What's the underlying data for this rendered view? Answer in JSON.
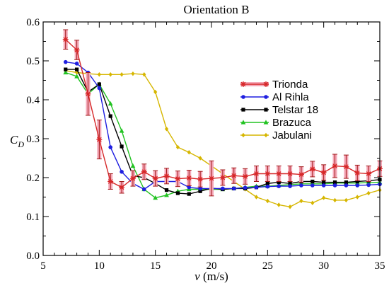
{
  "chart_data": {
    "type": "line",
    "title": "Orientation B",
    "xlabel": "v",
    "xlabel_unit": "(m/s)",
    "ylabel": "C",
    "ylabel_sub": "D",
    "xlim": [
      5,
      35
    ],
    "ylim": [
      0.0,
      0.6
    ],
    "xticks": [
      "5",
      "10",
      "15",
      "20",
      "25",
      "30",
      "35"
    ],
    "yticks": [
      "0.0",
      "0.1",
      "0.2",
      "0.3",
      "0.4",
      "0.5",
      "0.6"
    ],
    "grid": false,
    "legend_position": "right",
    "series": [
      {
        "name": "Trionda",
        "color": "#d62728",
        "marker": "asterisk",
        "error_color": "#f4a8b8",
        "x": [
          7,
          8,
          9,
          10,
          11,
          12,
          13,
          14,
          15,
          16,
          17,
          18,
          19,
          20,
          21,
          22,
          23,
          24,
          25,
          26,
          27,
          28,
          29,
          30,
          31,
          32,
          33,
          34,
          35
        ],
        "y": [
          0.555,
          0.528,
          0.415,
          0.298,
          0.19,
          0.175,
          0.198,
          0.215,
          0.198,
          0.204,
          0.197,
          0.199,
          0.196,
          0.198,
          0.2,
          0.205,
          0.203,
          0.21,
          0.21,
          0.21,
          0.21,
          0.208,
          0.222,
          0.213,
          0.23,
          0.228,
          0.212,
          0.21,
          0.223
        ],
        "err": [
          0.025,
          0.025,
          0.055,
          0.05,
          0.02,
          0.015,
          0.02,
          0.02,
          0.02,
          0.02,
          0.02,
          0.02,
          0.02,
          0.045,
          0.02,
          0.02,
          0.02,
          0.02,
          0.02,
          0.02,
          0.02,
          0.02,
          0.02,
          0.02,
          0.03,
          0.03,
          0.02,
          0.02,
          0.02
        ]
      },
      {
        "name": "Al Rihla",
        "color": "#1f1fe0",
        "marker": "circle",
        "x": [
          7,
          8,
          9,
          10,
          11,
          12,
          13,
          14,
          15,
          16,
          17,
          18,
          19,
          20,
          21,
          22,
          23,
          24,
          25,
          26,
          27,
          28,
          29,
          30,
          31,
          32,
          33,
          34,
          35
        ],
        "y": [
          0.497,
          0.493,
          0.47,
          0.43,
          0.278,
          0.215,
          0.185,
          0.17,
          0.19,
          0.19,
          0.19,
          0.175,
          0.172,
          0.172,
          0.172,
          0.172,
          0.174,
          0.175,
          0.177,
          0.178,
          0.178,
          0.18,
          0.18,
          0.18,
          0.18,
          0.18,
          0.18,
          0.181,
          0.183
        ]
      },
      {
        "name": "Telstar 18",
        "color": "#000000",
        "marker": "square",
        "x": [
          7,
          8,
          9,
          10,
          11,
          12,
          13,
          14,
          15,
          16,
          17,
          18,
          19,
          20,
          21,
          22,
          23,
          24,
          25,
          26,
          27,
          28,
          29,
          30,
          31,
          32,
          33,
          34,
          35
        ],
        "y": [
          0.478,
          0.478,
          0.42,
          0.44,
          0.358,
          0.28,
          0.205,
          0.2,
          0.185,
          0.168,
          0.16,
          0.158,
          0.165,
          0.173,
          0.17,
          0.172,
          0.172,
          0.175,
          0.185,
          0.188,
          0.185,
          0.19,
          0.19,
          0.188,
          0.188,
          0.188,
          0.19,
          0.192,
          0.195
        ]
      },
      {
        "name": "Brazuca",
        "color": "#22c322",
        "marker": "triangle",
        "x": [
          7,
          8,
          9,
          10,
          11,
          12,
          13,
          14,
          15,
          16,
          17,
          18,
          19,
          20,
          21,
          22,
          23,
          24,
          25,
          26,
          27,
          28,
          29,
          30,
          31,
          32,
          33,
          34,
          35
        ],
        "y": [
          0.47,
          0.46,
          0.415,
          0.44,
          0.39,
          0.32,
          0.23,
          0.17,
          0.148,
          0.155,
          0.165,
          0.17,
          0.17,
          0.17,
          0.17,
          0.172,
          0.175,
          0.178,
          0.178,
          0.18,
          0.182,
          0.184,
          0.184,
          0.184,
          0.186,
          0.186,
          0.186,
          0.187,
          0.188
        ]
      },
      {
        "name": "Jabulani",
        "color": "#d6b600",
        "marker": "diamond",
        "x": [
          7,
          8,
          9,
          10,
          11,
          12,
          13,
          14,
          15,
          16,
          17,
          18,
          19,
          20,
          21,
          22,
          23,
          24,
          25,
          26,
          27,
          28,
          29,
          30,
          31,
          32,
          33,
          34,
          35
        ],
        "y": [
          0.475,
          0.47,
          0.467,
          0.465,
          0.465,
          0.465,
          0.467,
          0.465,
          0.42,
          0.325,
          0.278,
          0.265,
          0.25,
          0.23,
          0.21,
          0.19,
          0.17,
          0.15,
          0.14,
          0.13,
          0.125,
          0.14,
          0.135,
          0.148,
          0.142,
          0.142,
          0.15,
          0.16,
          0.168
        ]
      }
    ]
  }
}
